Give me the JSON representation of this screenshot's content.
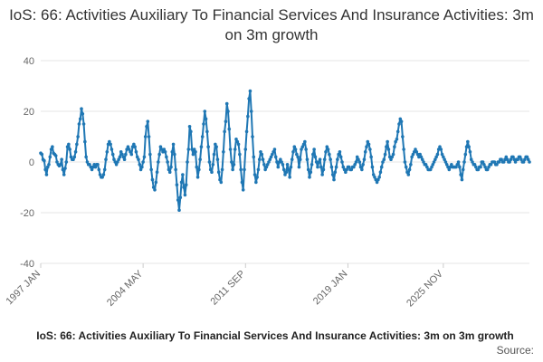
{
  "title": "IoS: 66: Activities Auxiliary To Financial Services And Insurance Activities: 3m on 3m growth",
  "caption": "IoS: 66: Activities Auxiliary To Financial Services And Insurance Activities: 3m on 3m growth",
  "source": "Source:",
  "colors": {
    "series": "#1f77b4",
    "grid": "#e5e5e5",
    "axis": "#ccc"
  },
  "chart_data": {
    "type": "line",
    "title": "IoS: 66: Activities Auxiliary To Financial Services And Insurance Activities: 3m on 3m growth",
    "xlabel": "",
    "ylabel": "",
    "ylim": [
      -40,
      40
    ],
    "y_ticks": [
      40,
      20,
      0,
      -20,
      -40
    ],
    "x_tick_labels": [
      "1997 JAN",
      "2004 MAY",
      "2011 SEP",
      "2019 JAN",
      "2025 NOV"
    ],
    "x_tick_index": [
      0,
      88,
      176,
      264,
      346
    ],
    "grid": true,
    "legend": "none",
    "series": [
      {
        "values": [
          3.5,
          3,
          1,
          0.5,
          -3,
          -5,
          -2,
          -1,
          2,
          5,
          6,
          3.5,
          3,
          2.5,
          0,
          -1,
          -1.5,
          -1,
          1,
          -3,
          -5,
          -2.5,
          0,
          6,
          7,
          5,
          2,
          1,
          1,
          2,
          4,
          7,
          10,
          15,
          17,
          21,
          19,
          15,
          8,
          2,
          0,
          -1,
          -1,
          -2,
          -3,
          -2,
          -1,
          -2,
          -1,
          -1,
          -3,
          -5,
          -6,
          -6,
          -5,
          -3,
          1,
          4,
          7,
          8,
          7,
          5,
          3,
          1,
          0,
          -1,
          0,
          1,
          2,
          4,
          3,
          2,
          1,
          3,
          5,
          6,
          5,
          4,
          3,
          6,
          7,
          6,
          4,
          2,
          1,
          -1,
          -3,
          -2,
          0,
          2,
          10,
          14,
          16,
          10,
          3,
          -3,
          -7,
          -10,
          -11,
          -8,
          -4,
          0,
          3,
          6,
          5,
          4,
          5,
          4,
          2,
          0,
          -3,
          -4,
          -2,
          4,
          7,
          3,
          -3,
          -9,
          -15,
          -19,
          -14,
          -8,
          -5,
          -10,
          -13,
          -9,
          0,
          5,
          14,
          12,
          5,
          3,
          5,
          4,
          -2,
          -6,
          -3,
          1,
          6,
          10,
          15,
          20,
          17,
          12,
          6,
          0,
          -3,
          -4,
          -1,
          3,
          7,
          6,
          1,
          -4,
          -7,
          -8,
          -3,
          4,
          12,
          16,
          23,
          20,
          13,
          5,
          0,
          -3,
          -1,
          5,
          9,
          8,
          7,
          3,
          -3,
          -8,
          -11,
          -3,
          5,
          12,
          18,
          25,
          28,
          20,
          10,
          2,
          -5,
          -8,
          -6,
          -3,
          1,
          4,
          3,
          1,
          -1,
          -3,
          -2,
          -1,
          0,
          1,
          2,
          3,
          4,
          5,
          2,
          0,
          -2,
          0,
          1,
          0,
          -1,
          -3,
          -5,
          -4,
          -1,
          -3,
          -6,
          -2,
          1,
          4,
          6,
          5,
          3,
          2,
          -2,
          1,
          5,
          6,
          7,
          8,
          5,
          1,
          -3,
          -6,
          -4,
          -1,
          3,
          5,
          2,
          0,
          -2,
          0,
          1,
          -2,
          -5,
          -3,
          1,
          4,
          6,
          5,
          3,
          1,
          -2,
          -5,
          -7,
          -4,
          -2,
          1,
          3,
          4,
          2,
          0,
          -2,
          -3,
          -4,
          -3,
          -2,
          -2,
          -3,
          -3,
          -2,
          -2,
          -1,
          0,
          2,
          1,
          0,
          -2,
          -3,
          -1,
          1,
          4,
          6,
          8,
          7,
          5,
          2,
          -2,
          -5,
          -6,
          -7,
          -8,
          -7,
          -6,
          -4,
          -2,
          0,
          1,
          3,
          6,
          8,
          5,
          2,
          1,
          2,
          3,
          6,
          8,
          9,
          12,
          15,
          17,
          16,
          10,
          5,
          0,
          -2,
          -4,
          -5,
          -3,
          -1,
          2,
          3,
          4,
          5,
          4,
          3,
          2,
          3,
          2,
          1,
          0,
          -1,
          -1,
          -2,
          -3,
          -3,
          -3,
          -2,
          -1,
          0,
          1,
          2,
          3,
          5,
          6,
          5,
          3,
          2,
          1,
          0,
          -1,
          -2,
          -3,
          -2,
          -1,
          -2,
          -2,
          -2,
          -2,
          -1,
          0,
          -2,
          -5,
          -7,
          -3,
          0,
          3,
          6,
          8,
          6,
          4,
          1,
          0,
          -1,
          -1,
          -2,
          -3,
          -3,
          -2,
          -2,
          0,
          0,
          -1,
          -2,
          -3,
          -3,
          -2,
          -1,
          -1,
          0,
          0,
          0,
          -1,
          -1,
          0,
          0,
          1,
          1,
          0,
          0,
          1,
          2,
          1,
          0,
          0,
          1,
          2,
          2,
          1,
          0,
          1,
          1,
          2,
          2,
          1,
          0,
          0,
          1,
          2,
          2,
          1,
          0
        ]
      }
    ]
  }
}
